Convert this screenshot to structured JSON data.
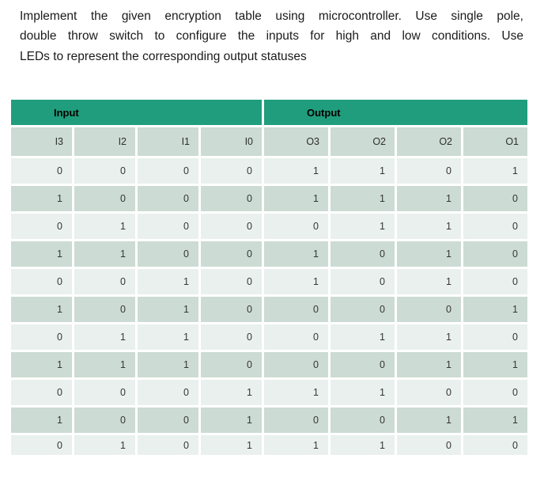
{
  "intro": {
    "lines": [
      "Implement the given encryption table using microcontroller. Use single pole,",
      "double throw switch to configure the inputs for high and low conditions. Use",
      "LEDs to represent the corresponding output statuses"
    ]
  },
  "table": {
    "groups": {
      "input": "Input",
      "output": "Output"
    },
    "columns": [
      "I3",
      "I2",
      "I1",
      "I0",
      "O3",
      "O2",
      "O2",
      "O1"
    ],
    "rows": [
      [
        "0",
        "0",
        "0",
        "0",
        "1",
        "1",
        "0",
        "1"
      ],
      [
        "1",
        "0",
        "0",
        "0",
        "1",
        "1",
        "1",
        "0"
      ],
      [
        "0",
        "1",
        "0",
        "0",
        "0",
        "1",
        "1",
        "0"
      ],
      [
        "1",
        "1",
        "0",
        "0",
        "1",
        "0",
        "1",
        "0"
      ],
      [
        "0",
        "0",
        "1",
        "0",
        "1",
        "0",
        "1",
        "0"
      ],
      [
        "1",
        "0",
        "1",
        "0",
        "0",
        "0",
        "0",
        "1"
      ],
      [
        "0",
        "1",
        "1",
        "0",
        "0",
        "1",
        "1",
        "0"
      ],
      [
        "1",
        "1",
        "1",
        "0",
        "0",
        "0",
        "1",
        "1"
      ],
      [
        "0",
        "0",
        "0",
        "1",
        "1",
        "1",
        "0",
        "0"
      ],
      [
        "1",
        "0",
        "0",
        "1",
        "0",
        "0",
        "1",
        "1"
      ],
      [
        "0",
        "1",
        "0",
        "1",
        "1",
        "1",
        "0",
        "0"
      ]
    ]
  },
  "colors": {
    "header_green": "#209D7C",
    "band_dark": "#CCDBD3",
    "band_light": "#E9F0ED",
    "text": "#1B1B1B"
  }
}
